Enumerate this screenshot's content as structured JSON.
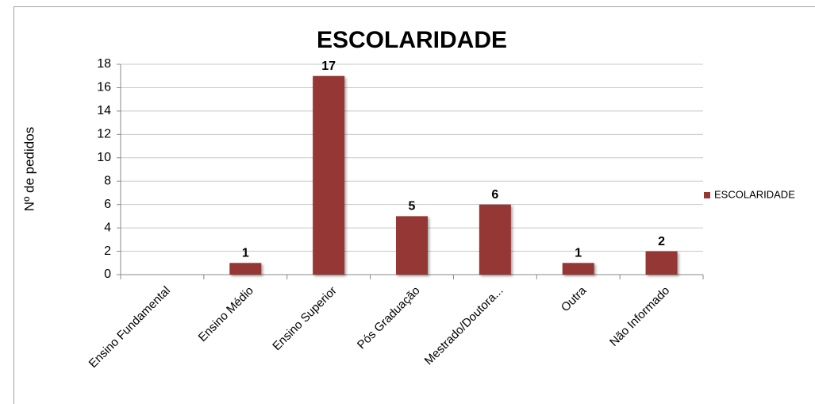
{
  "chart_data": {
    "type": "bar",
    "title": "ESCOLARIDADE",
    "y_label": "Nº de pedidos",
    "categories": [
      "Ensino Fundamental",
      "Ensino Médio",
      "Ensino Superior",
      "Pós Graduação",
      "Mestrado/Doutora...",
      "Outra",
      "Não Informado"
    ],
    "series": [
      {
        "name": "ESCOLARIDADE",
        "color": "#953735",
        "values": [
          0,
          1,
          17,
          5,
          6,
          1,
          2
        ]
      }
    ],
    "ylim": [
      0,
      18
    ],
    "yticks": [
      0,
      2,
      4,
      6,
      8,
      10,
      12,
      14,
      16,
      18
    ],
    "grid": true,
    "legend": "right"
  }
}
